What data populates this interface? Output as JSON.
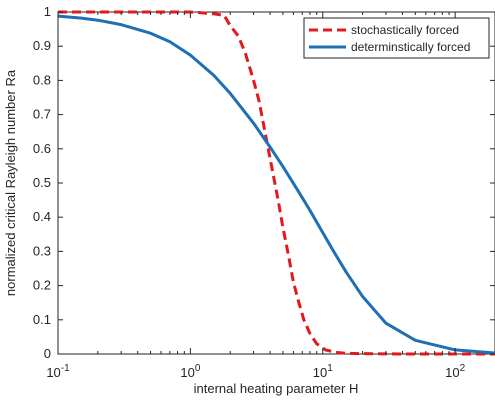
{
  "chart_data": {
    "type": "line",
    "title": "",
    "xlabel": "internal heating parameter H",
    "ylabel": "normalized critical Rayleigh number Ra",
    "xscale": "log",
    "xlim": [
      0.1,
      200
    ],
    "ylim": [
      0,
      1
    ],
    "grid": false,
    "legend_position": "top-right",
    "x_ticks": [
      {
        "value": 0.1,
        "base": "10",
        "exp": "-1"
      },
      {
        "value": 1,
        "base": "10",
        "exp": "0"
      },
      {
        "value": 10,
        "base": "10",
        "exp": "1"
      },
      {
        "value": 100,
        "base": "10",
        "exp": "2"
      }
    ],
    "y_ticks": [
      {
        "value": 0,
        "label": "0"
      },
      {
        "value": 0.1,
        "label": "0.1"
      },
      {
        "value": 0.2,
        "label": "0.2"
      },
      {
        "value": 0.3,
        "label": "0.3"
      },
      {
        "value": 0.4,
        "label": "0.4"
      },
      {
        "value": 0.5,
        "label": "0.5"
      },
      {
        "value": 0.6,
        "label": "0.6"
      },
      {
        "value": 0.7,
        "label": "0.7"
      },
      {
        "value": 0.8,
        "label": "0.8"
      },
      {
        "value": 0.9,
        "label": "0.9"
      },
      {
        "value": 1,
        "label": "1"
      }
    ],
    "series": [
      {
        "name": "stochastically forced",
        "color": "#e31a1c",
        "style": "dashed",
        "x": [
          0.1,
          0.2,
          0.5,
          1.0,
          1.5,
          1.8,
          2.0,
          2.3,
          2.6,
          3.0,
          3.3,
          3.7,
          4.1,
          4.6,
          5.0,
          5.5,
          6.0,
          6.6,
          7.2,
          8.0,
          9.0,
          10.5,
          12.5,
          15,
          20,
          40,
          200
        ],
        "y": [
          1.0,
          1.0,
          1.0,
          1.0,
          0.995,
          0.99,
          0.96,
          0.93,
          0.88,
          0.8,
          0.74,
          0.64,
          0.55,
          0.45,
          0.37,
          0.29,
          0.21,
          0.15,
          0.1,
          0.06,
          0.03,
          0.012,
          0.005,
          0.002,
          0.001,
          0.0,
          0.0
        ]
      },
      {
        "name": "determinstically forced",
        "color": "#1f6fb4",
        "style": "solid",
        "x": [
          0.1,
          0.15,
          0.2,
          0.3,
          0.5,
          0.7,
          1.0,
          1.5,
          2.0,
          3.0,
          4.0,
          5.0,
          6.0,
          7.0,
          8.0,
          10,
          12,
          15,
          20,
          30,
          50,
          100,
          200
        ],
        "y": [
          0.988,
          0.982,
          0.976,
          0.963,
          0.938,
          0.913,
          0.874,
          0.815,
          0.762,
          0.675,
          0.605,
          0.548,
          0.499,
          0.457,
          0.42,
          0.355,
          0.302,
          0.24,
          0.168,
          0.09,
          0.04,
          0.012,
          0.003
        ]
      }
    ]
  }
}
